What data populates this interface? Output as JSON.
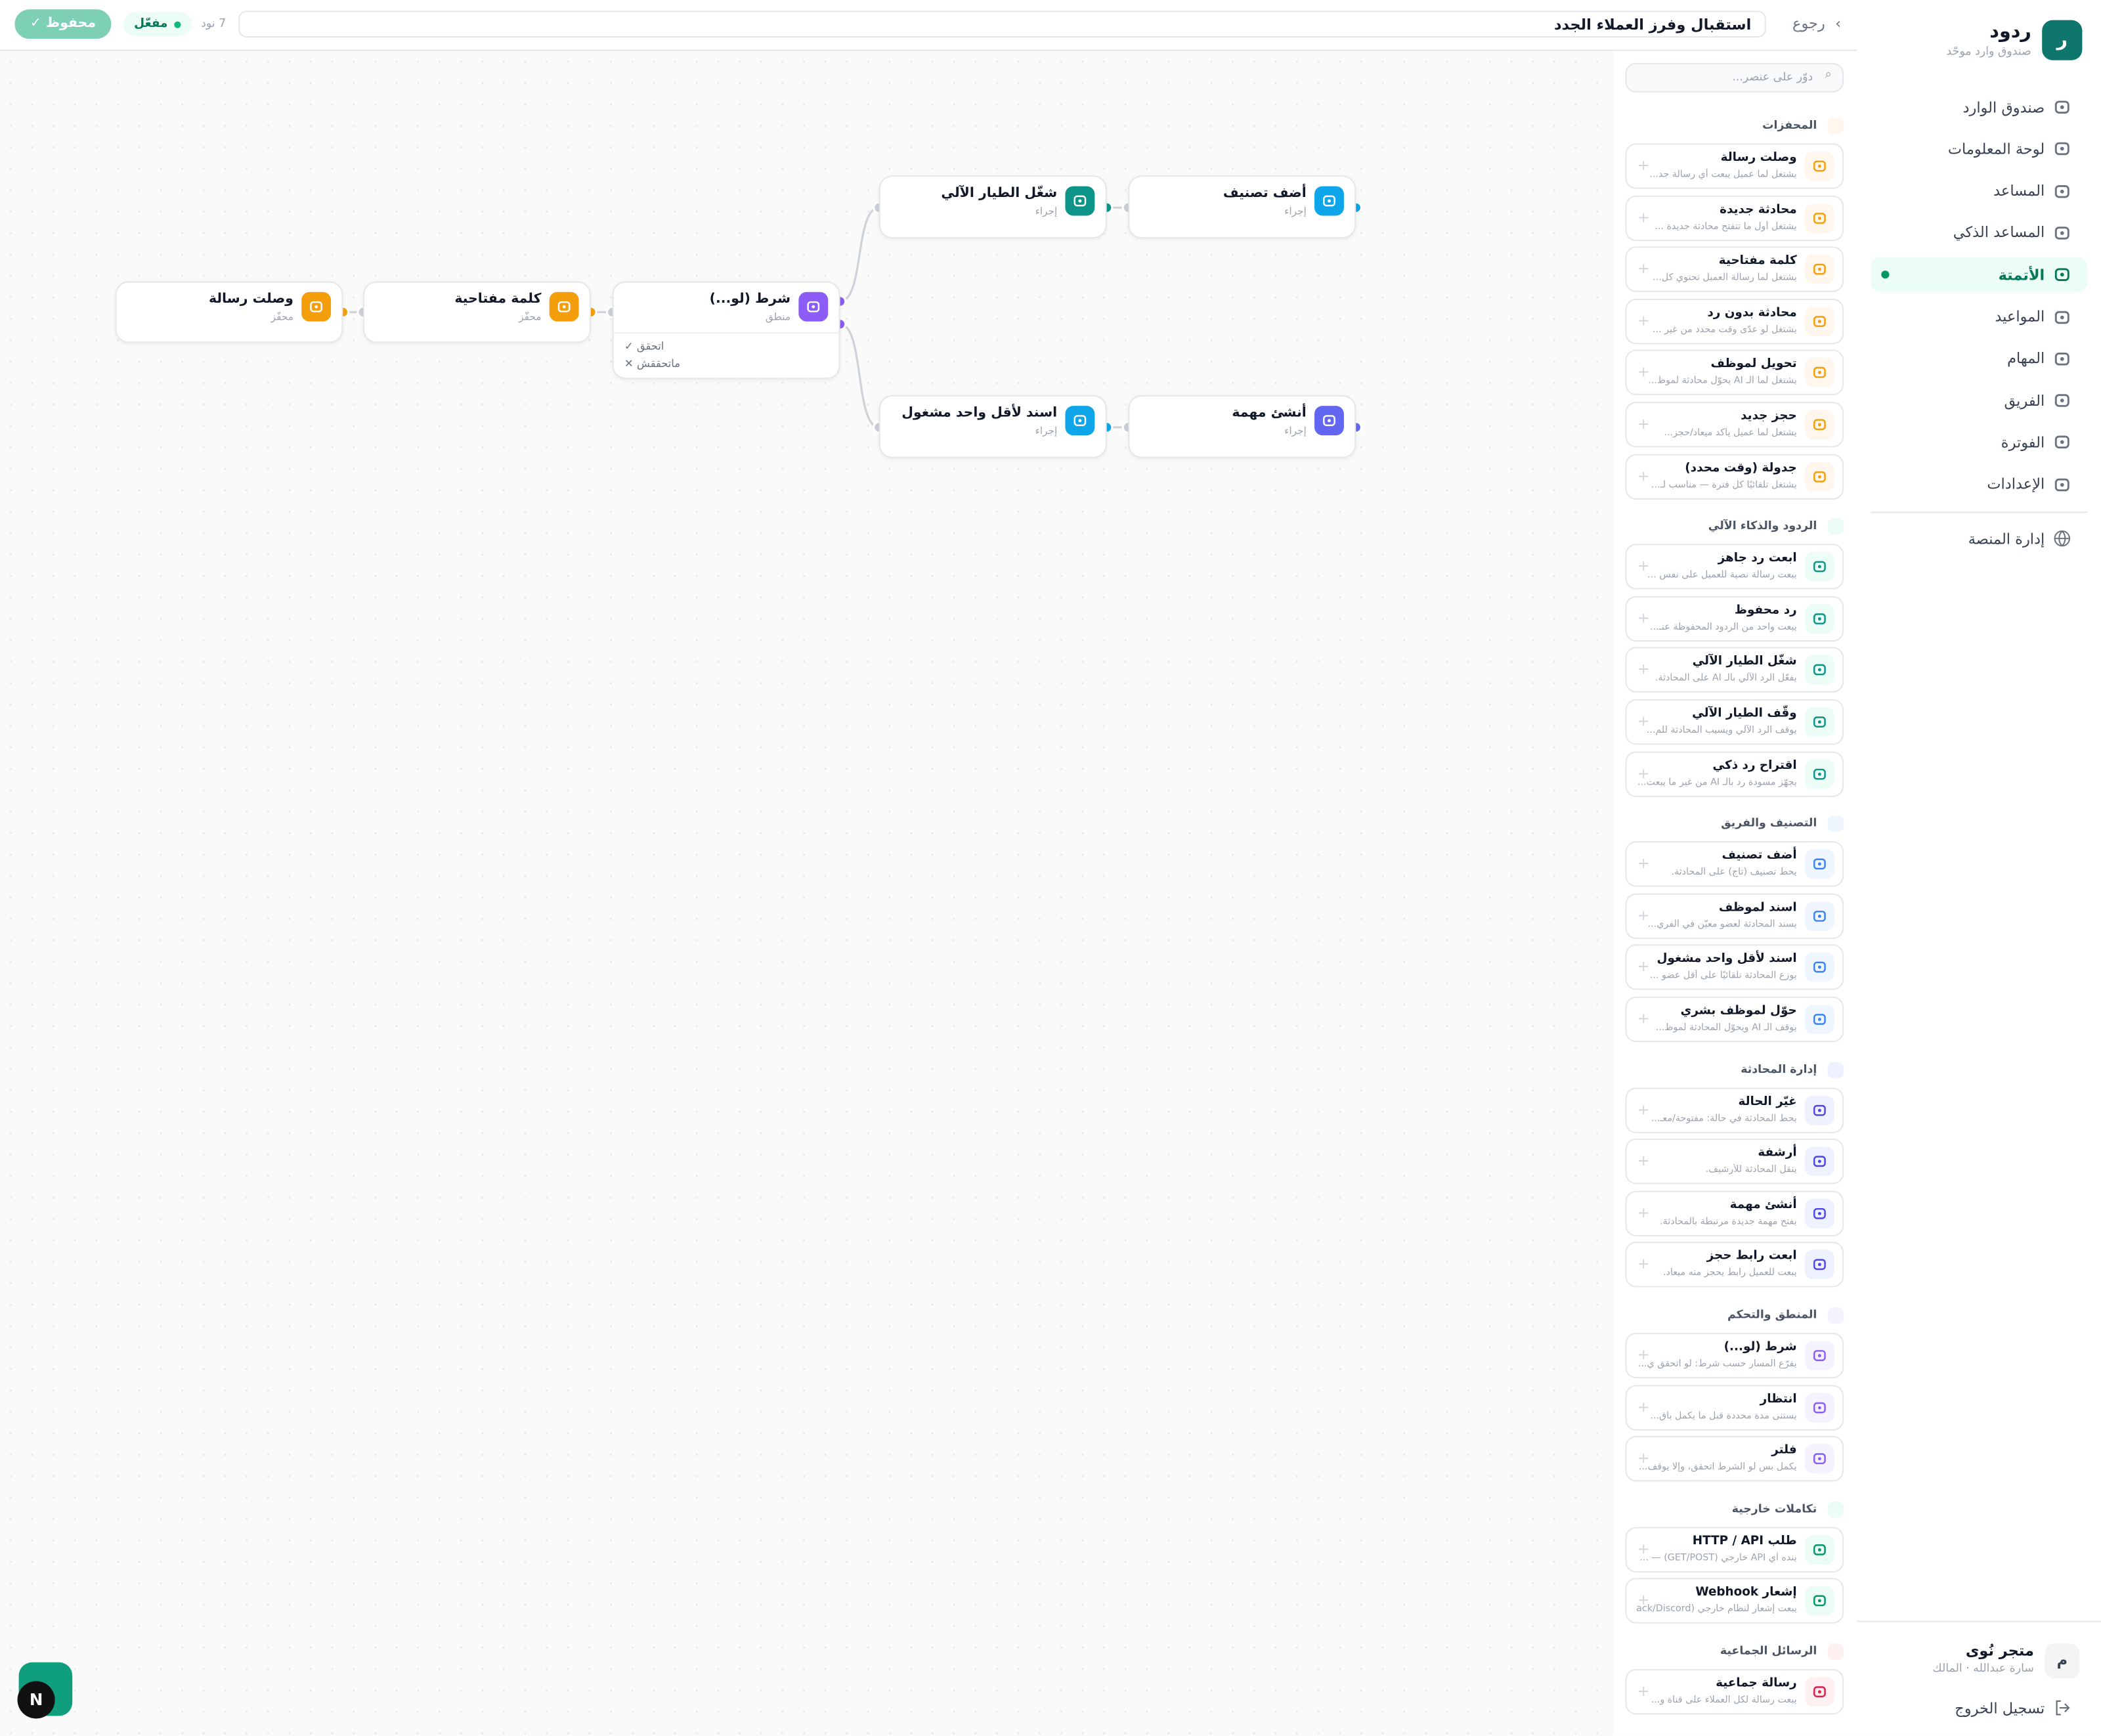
{
  "sidebar": {
    "logo": "ر",
    "brand": "ردود",
    "tagline": "صندوق وارد موحّد",
    "nav": [
      "صندوق الوارد",
      "لوحة المعلومات",
      "المساعد",
      "المساعد الذكي",
      "الأتمتة",
      "المواعيد",
      "المهام",
      "الفريق",
      "الفوترة",
      "الإعدادات"
    ],
    "admin": "إدارة المنصة",
    "user": {
      "avatar": "م",
      "name": "متجر نُوى",
      "role": "سارة عبدالله · المالك"
    },
    "logout": "تسجيل الخروج"
  },
  "topbar": {
    "back": "رجوع",
    "title": "استقبال وفرز العملاء الجدد",
    "count": "7 نود",
    "status": "مفعّل",
    "saved": "محفوظ"
  },
  "palette": {
    "search": "دوّر على عنصر...",
    "sections": [
      {
        "title": "المحفزات",
        "items": [
          {
            "title": "وصلت رسالة",
            "desc": "يشتغل لما عميل يبعت أي رسالة جد..."
          },
          {
            "title": "محادثة جديدة",
            "desc": "يشتغل أول ما تتفتح محادثة جديدة ..."
          },
          {
            "title": "كلمة مفتاحية",
            "desc": "يشتغل لما رسالة العميل تحتوي كل..."
          },
          {
            "title": "محادثة بدون رد",
            "desc": "يشتغل لو عدّى وقت محدد من غير ..."
          },
          {
            "title": "تحويل لموظف",
            "desc": "يشتغل لما الـ AI يحوّل محادثة لموظ..."
          },
          {
            "title": "حجز جديد",
            "desc": "يشتغل لما عميل يأكد ميعاد/حجز..."
          },
          {
            "title": "جدولة (وقت محدد)",
            "desc": "يشتغل تلقائيًا كل فترة — مناسب لـ..."
          }
        ]
      },
      {
        "title": "الردود والذكاء الآلي",
        "items": [
          {
            "title": "ابعت رد جاهز",
            "desc": "يبعت رسالة نصية للعميل على نفس ..."
          },
          {
            "title": "رد محفوظ",
            "desc": "يبعت واحد من الردود المحفوظة عنـ..."
          },
          {
            "title": "شغّل الطيار الآلي",
            "desc": "يفعّل الرد الآلي بالـ AI على المحادثة."
          },
          {
            "title": "وقّف الطيار الآلي",
            "desc": "يوقف الرد الآلي ويسيب المحادثة للم..."
          },
          {
            "title": "اقتراح رد ذكي",
            "desc": "يجهّز مسودة رد بالـ AI من غير ما يبعت..."
          }
        ]
      },
      {
        "title": "التصنيف والفريق",
        "items": [
          {
            "title": "أضف تصنيف",
            "desc": "يحط تصنيف (تاج) على المحادثة."
          },
          {
            "title": "اسند لموظف",
            "desc": "يسند المحادثة لعضو معيّن في الفري..."
          },
          {
            "title": "اسند لأقل واحد مشغول",
            "desc": "يوزع المحادثة تلقائيًا على أقل عضو ..."
          },
          {
            "title": "حوّل لموظف بشري",
            "desc": "يوقف الـ AI ويحوّل المحادثة لموظ..."
          }
        ]
      },
      {
        "title": "إدارة المحادثة",
        "items": [
          {
            "title": "غيّر الحالة",
            "desc": "يحط المحادثة في حالة: مفتوحة/معـ..."
          },
          {
            "title": "أرشفة",
            "desc": "ينقل المحادثة للأرشيف."
          },
          {
            "title": "أنشئ مهمة",
            "desc": "يفتح مهمة جديدة مرتبطة بالمحادثة."
          },
          {
            "title": "ابعت رابط حجز",
            "desc": "يبعت للعميل رابط يحجز منه ميعاد."
          }
        ]
      },
      {
        "title": "المنطق والتحكم",
        "items": [
          {
            "title": "شرط (لو...)",
            "desc": "يفرّع المسار حسب شرط: لو اتحقق ي..."
          },
          {
            "title": "انتظار",
            "desc": "يستنى مدة محددة قبل ما يكمل باق..."
          },
          {
            "title": "فلتر",
            "desc": "يكمل بس لو الشرط اتحقق، وإلا يوقف..."
          }
        ]
      },
      {
        "title": "تكاملات خارجية",
        "items": [
          {
            "title": "طلب HTTP / API",
            "desc": "ينده أي API خارجي (GET/POST) — ..."
          },
          {
            "title": "إشعار Webhook",
            "desc": "يبعت إشعار لنظام خارجي (Slack/Discord..."
          }
        ]
      },
      {
        "title": "الرسائل الجماعية",
        "items": [
          {
            "title": "رسالة جماعية",
            "desc": "يبعت رسالة لكل العملاء على قناة و..."
          }
        ]
      }
    ]
  },
  "canvas": {
    "nodes": [
      {
        "title": "وصلت رسالة",
        "kind": "محفّز"
      },
      {
        "title": "كلمة مفتاحية",
        "kind": "محفّز"
      },
      {
        "title": "شرط (لو...)",
        "kind": "منطق",
        "branches": [
          "✓ اتحقق",
          "✕ ماتحققش"
        ]
      },
      {
        "title": "شغّل الطيار الآلي",
        "kind": "إجراء"
      },
      {
        "title": "أضف تصنيف",
        "kind": "إجراء"
      },
      {
        "title": "اسند لأقل واحد مشغول",
        "kind": "إجراء"
      },
      {
        "title": "أنشئ مهمة",
        "kind": "إجراء"
      }
    ]
  },
  "devtools": "N"
}
